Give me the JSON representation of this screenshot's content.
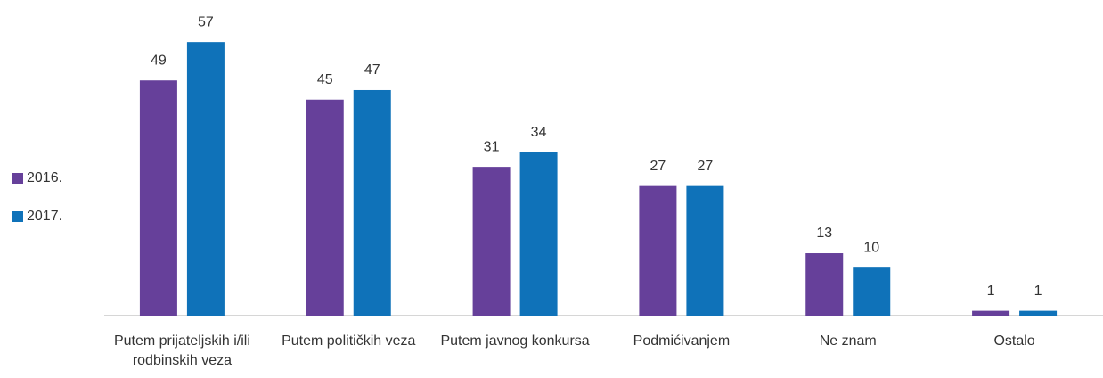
{
  "chart_data": {
    "type": "bar",
    "categories": [
      "Putem prijateljskih i/ili rodbinskih veza",
      "Putem političkih veza",
      "Putem javnog konkursa",
      "Podmićivanjem",
      "Ne znam",
      "Ostalo"
    ],
    "series": [
      {
        "name": "2016.",
        "color": "#66409a",
        "values": [
          49,
          45,
          31,
          27,
          13,
          1
        ]
      },
      {
        "name": "2017.",
        "color": "#0f72b9",
        "values": [
          57,
          47,
          34,
          27,
          10,
          1
        ]
      }
    ],
    "ylim": [
      0,
      60
    ],
    "legend": "left"
  }
}
